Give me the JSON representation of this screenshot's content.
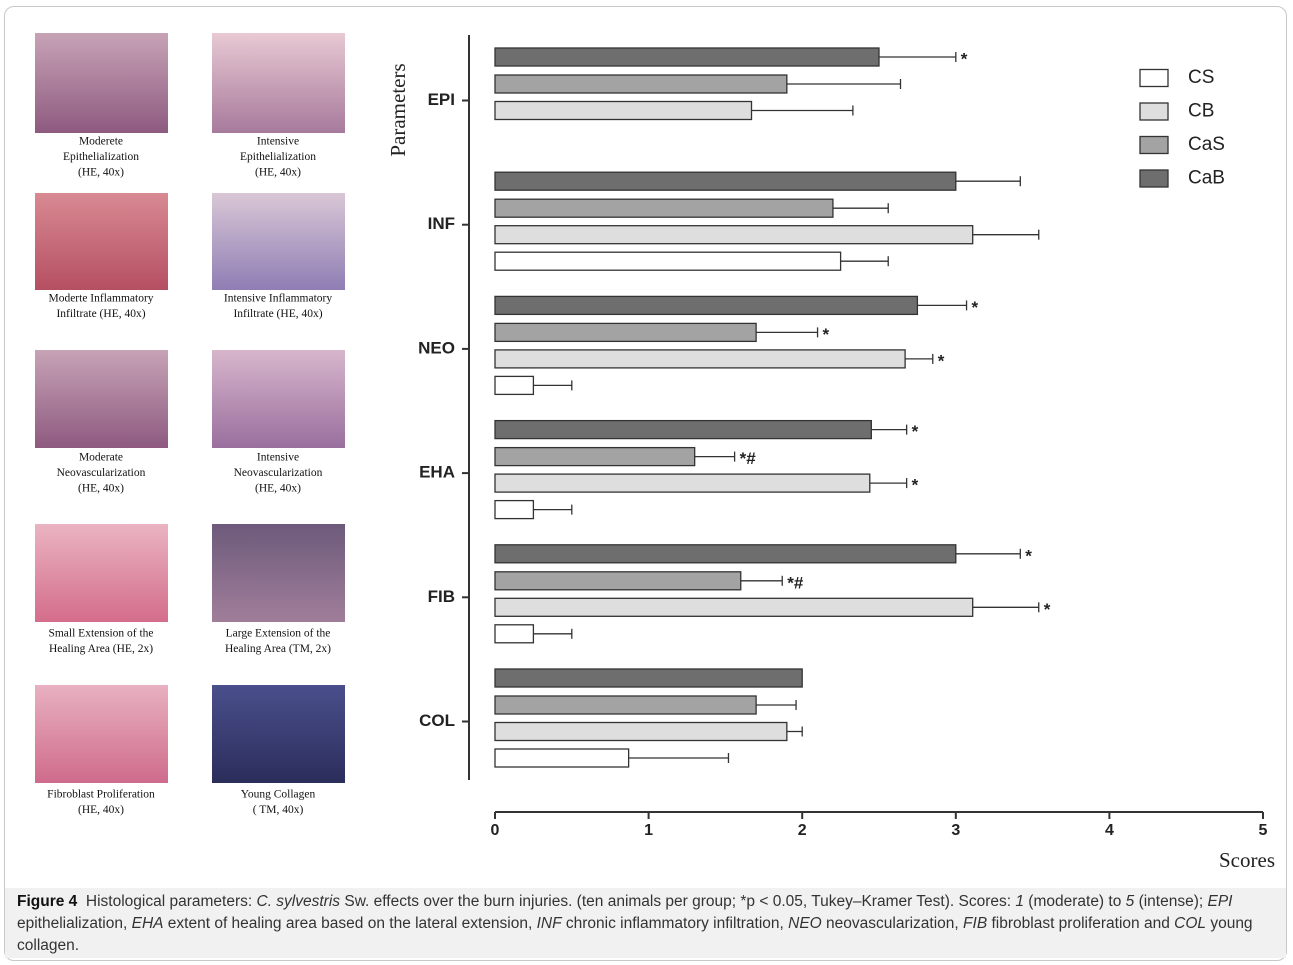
{
  "chart_data": {
    "type": "hbar-grouped",
    "y_label": "Parameters",
    "x_label": "Scores",
    "categories": [
      "EPI",
      "INF",
      "NEO",
      "EHA",
      "FIB",
      "COL"
    ],
    "series": [
      {
        "name": "CaB",
        "color": "#6e6e6e",
        "values": [
          2.5,
          3.0,
          2.75,
          2.45,
          3.0,
          2.0
        ],
        "errors": [
          0.5,
          0.42,
          0.32,
          0.23,
          0.42,
          0
        ],
        "significance": [
          "*",
          null,
          "*",
          "*",
          "*",
          null
        ]
      },
      {
        "name": "CaS",
        "color": "#a3a3a3",
        "values": [
          1.9,
          2.2,
          1.7,
          1.3,
          1.6,
          1.7
        ],
        "errors": [
          0.74,
          0.36,
          0.4,
          0.26,
          0.27,
          0.26
        ],
        "significance": [
          null,
          null,
          "*",
          "*#",
          "*#",
          null
        ]
      },
      {
        "name": "CB",
        "color": "#dedede",
        "values": [
          1.67,
          3.11,
          2.67,
          2.44,
          3.11,
          1.9
        ],
        "errors": [
          0.66,
          0.43,
          0.18,
          0.24,
          0.43,
          0.1
        ],
        "significance": [
          null,
          null,
          "*",
          "*",
          "*",
          null
        ]
      },
      {
        "name": "CS",
        "color": "#ffffff",
        "values": [
          0,
          2.25,
          0.25,
          0.25,
          0.25,
          0.87
        ],
        "errors": [
          0,
          0.31,
          0.25,
          0.25,
          0.25,
          0.65
        ],
        "significance": [
          null,
          null,
          null,
          null,
          null,
          null
        ]
      }
    ],
    "legend_order": [
      3,
      2,
      1,
      0
    ],
    "xlim": [
      0,
      5
    ],
    "xticks": [
      0,
      1,
      2,
      3,
      4,
      5
    ]
  },
  "panels": [
    {
      "lines": [
        "Moderete",
        "Epithelialization",
        "(HE, 40x)"
      ]
    },
    {
      "lines": [
        "Intensive",
        "Epithelialization",
        "(HE, 40x)"
      ]
    },
    {
      "lines": [
        "Moderte Inflammatory",
        "Infiltrate  (HE, 40x)"
      ]
    },
    {
      "lines": [
        "Intensive Inflammatory",
        "Infiltrate (HE, 40x)"
      ]
    },
    {
      "lines": [
        "Moderate",
        "Neovascularization",
        "(HE, 40x)"
      ]
    },
    {
      "lines": [
        "Intensive",
        "Neovascularization",
        "(HE, 40x)"
      ]
    },
    {
      "lines": [
        "Small Extension of the",
        "Healing Area  (HE, 2x)"
      ]
    },
    {
      "lines": [
        "Large Extension of the",
        "Healing Area  (TM,  2x)"
      ]
    },
    {
      "lines": [
        "Fibroblast Proliferation",
        "(HE, 40x)"
      ]
    },
    {
      "lines": [
        "Young Collagen",
        "( TM, 40x)"
      ]
    }
  ],
  "caption": {
    "label": "Figure 4",
    "parts": [
      "Histological parameters: ",
      "C. sylvestris",
      " Sw. effects over the burn injuries. (ten animals per group; *p < 0.05, Tukey–Kramer Test). Scores: ",
      "1",
      " (moderate) to ",
      "5",
      " (intense); ",
      "EPI",
      " epithelialization, ",
      "EHA",
      " extent of healing area based on the lateral extension, ",
      "INF",
      " chronic inflammatory infiltration, ",
      "NEO",
      " neovascularization, ",
      "FIB",
      " fibroblast proliferation and ",
      "COL",
      " young collagen."
    ]
  }
}
